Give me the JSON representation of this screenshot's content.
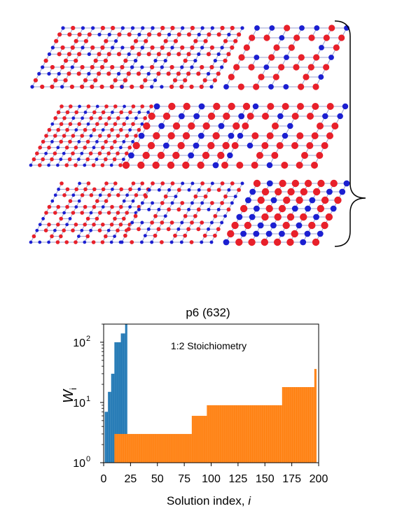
{
  "figure": {
    "structures_panel": {
      "rows": 3,
      "cols": 3,
      "atom_colors": {
        "red": "#e8202a",
        "blue": "#1b1fd1",
        "bond": "#9aa0d0"
      }
    },
    "chart": {
      "title": "p6 (632)",
      "annotation": "1:2 Stoichiometry",
      "ylabel_main": "W",
      "ylabel_sub": "i",
      "xlabel_main": "Solution index, ",
      "xlabel_italic": "i"
    }
  },
  "chart_data": {
    "type": "bar",
    "title": "p6 (632)",
    "xlabel": "Solution index, i",
    "ylabel": "W_i",
    "yscale": "log",
    "ylim": [
      1,
      200
    ],
    "xlim": [
      0,
      200
    ],
    "xticks": [
      0,
      25,
      50,
      75,
      100,
      125,
      150,
      175,
      200
    ],
    "xtick_labels": [
      "0",
      "25",
      "50",
      "75",
      "100",
      "125",
      "150",
      "175",
      "200"
    ],
    "yticks": [
      1,
      10,
      100
    ],
    "ytick_labels": [
      "10^0",
      "10^1",
      "10^2"
    ],
    "annotations": [
      "1:2 Stoichiometry"
    ],
    "series": [
      {
        "color": "#1f77b4",
        "segments": [
          {
            "x0": 1,
            "x1": 4,
            "value": 7
          },
          {
            "x0": 4,
            "x1": 7,
            "value": 15
          },
          {
            "x0": 7,
            "x1": 10,
            "value": 30
          },
          {
            "x0": 10,
            "x1": 16,
            "value": 100
          },
          {
            "x0": 16,
            "x1": 20,
            "value": 140
          },
          {
            "x0": 20,
            "x1": 22,
            "value": 200
          }
        ]
      },
      {
        "color": "#ff7f0e",
        "segments": [
          {
            "x0": 10,
            "x1": 82,
            "value": 3
          },
          {
            "x0": 82,
            "x1": 96,
            "value": 6
          },
          {
            "x0": 96,
            "x1": 166,
            "value": 9
          },
          {
            "x0": 166,
            "x1": 196,
            "value": 18
          },
          {
            "x0": 196,
            "x1": 198,
            "value": 36
          }
        ]
      }
    ]
  }
}
